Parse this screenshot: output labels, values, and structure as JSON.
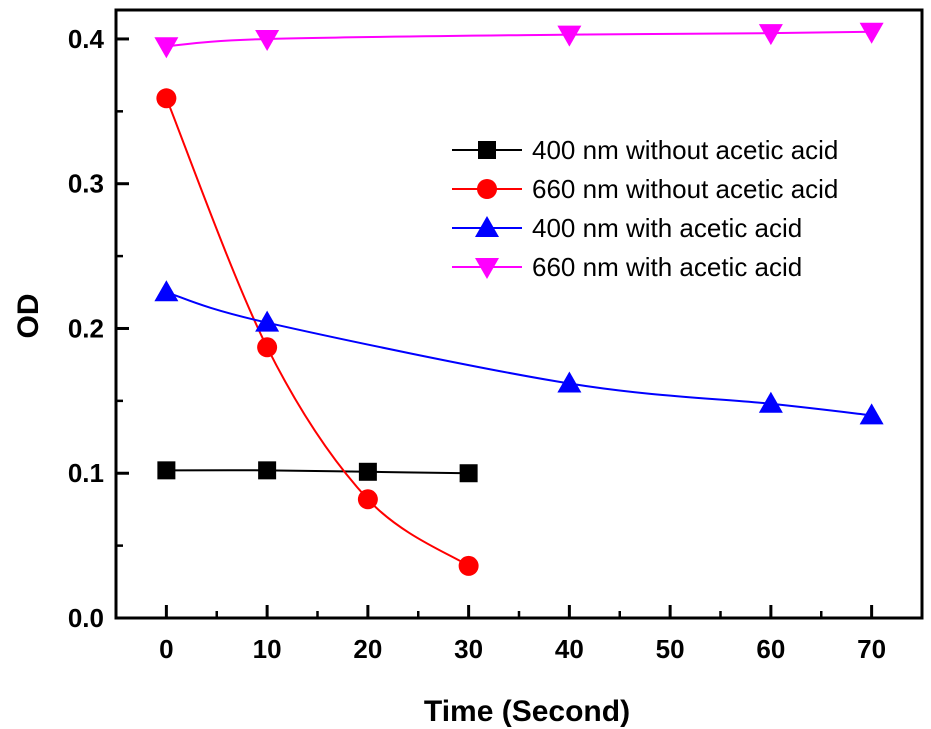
{
  "chart_data": {
    "type": "line",
    "title": "",
    "xlabel": "Time (Second)",
    "ylabel": "OD",
    "xlim": [
      -5,
      75
    ],
    "ylim": [
      0.0,
      0.42
    ],
    "xticks": [
      0,
      10,
      20,
      30,
      40,
      50,
      60,
      70
    ],
    "xtick_labels": [
      "0",
      "10",
      "20",
      "30",
      "40",
      "50",
      "60",
      "70"
    ],
    "yticks": [
      0.0,
      0.1,
      0.2,
      0.3,
      0.4
    ],
    "ytick_labels": [
      "0.0",
      "0.1",
      "0.2",
      "0.3",
      "0.4"
    ],
    "grid": false,
    "legend_position": "top-right",
    "series": [
      {
        "name": "400 nm without acetic acid",
        "color": "#000000",
        "marker": "square",
        "x": [
          0,
          10,
          20,
          30
        ],
        "y": [
          0.102,
          0.102,
          0.101,
          0.1
        ]
      },
      {
        "name": "660 nm without acetic acid",
        "color": "#ff0000",
        "marker": "circle",
        "x": [
          0,
          10,
          20,
          30
        ],
        "y": [
          0.359,
          0.187,
          0.082,
          0.036
        ]
      },
      {
        "name": "400 nm with acetic acid",
        "color": "#0000ff",
        "marker": "triangle-up",
        "x": [
          0,
          10,
          40,
          60,
          70
        ],
        "y": [
          0.225,
          0.204,
          0.162,
          0.148,
          0.14
        ]
      },
      {
        "name": "660 nm with acetic acid",
        "color": "#ff00ff",
        "marker": "triangle-down",
        "x": [
          0,
          10,
          40,
          60,
          70
        ],
        "y": [
          0.395,
          0.4,
          0.403,
          0.404,
          0.405
        ]
      }
    ]
  }
}
